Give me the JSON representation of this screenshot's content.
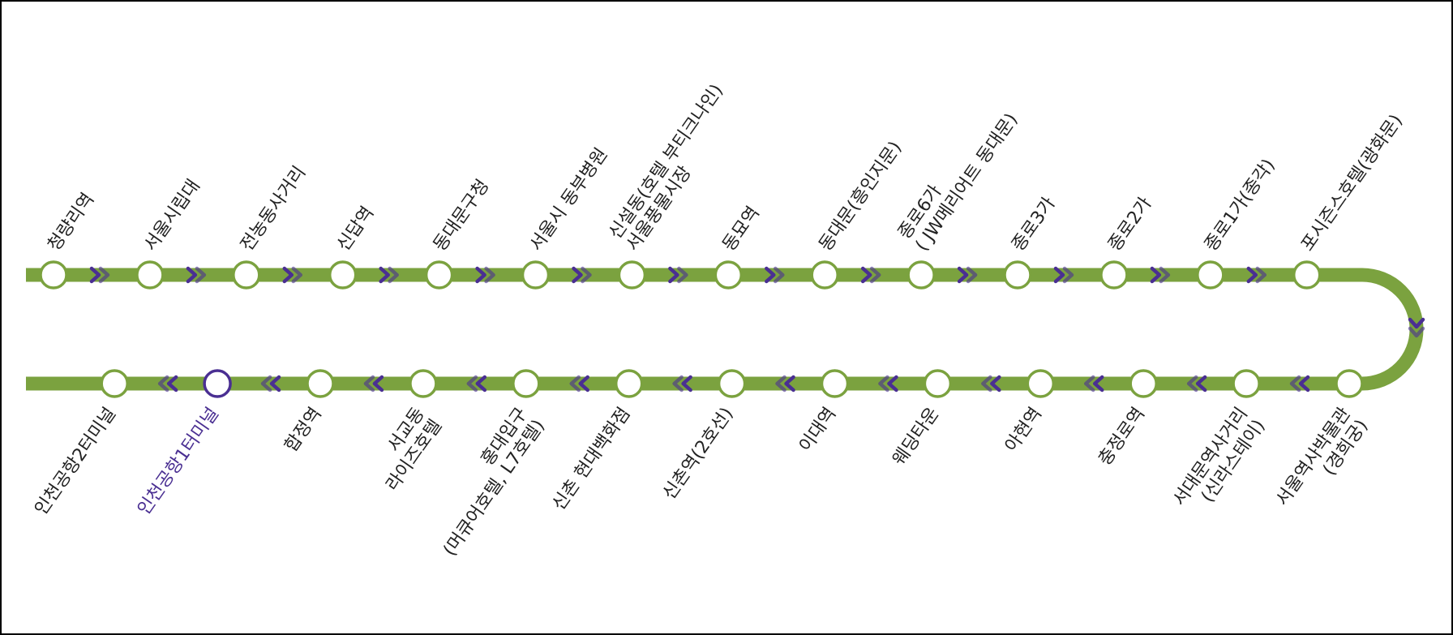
{
  "top_stations": [
    {
      "lines": [
        "청량리역"
      ]
    },
    {
      "lines": [
        "서울시립대"
      ]
    },
    {
      "lines": [
        "전농동사거리"
      ]
    },
    {
      "lines": [
        "신답역"
      ]
    },
    {
      "lines": [
        "동대문구청"
      ]
    },
    {
      "lines": [
        "서울시 동부병원"
      ]
    },
    {
      "lines": [
        "신설동(호텔 부티크나인)",
        "서울풍물시장"
      ]
    },
    {
      "lines": [
        "동묘역"
      ]
    },
    {
      "lines": [
        "동대문(흥인지문)"
      ]
    },
    {
      "lines": [
        "종로6가",
        "( JW메리어트 동대문)"
      ]
    },
    {
      "lines": [
        "종로3가"
      ]
    },
    {
      "lines": [
        "종로2가"
      ]
    },
    {
      "lines": [
        "종로1가(종각)"
      ]
    },
    {
      "lines": [
        "포시즌스호텔(광화문)"
      ]
    }
  ],
  "bottom_stations": [
    {
      "lines": [
        "서울역사박물관",
        "(경희궁)"
      ]
    },
    {
      "lines": [
        "서대문역사거리",
        "(신라스테이)"
      ]
    },
    {
      "lines": [
        "충정로역"
      ]
    },
    {
      "lines": [
        "아현역"
      ]
    },
    {
      "lines": [
        "웨딩타운"
      ]
    },
    {
      "lines": [
        "이대역"
      ]
    },
    {
      "lines": [
        "신촌역(2호선)"
      ]
    },
    {
      "lines": [
        "신촌 현대백화점"
      ]
    },
    {
      "lines": [
        "홍대입구",
        "(머큐어호텔, L7호텔)"
      ]
    },
    {
      "lines": [
        "서교동",
        "라이즈호텔"
      ]
    },
    {
      "lines": [
        "합정역"
      ]
    },
    {
      "lines": [
        "인천공항1터미널"
      ],
      "current": true
    },
    {
      "lines": [
        "인천공항2터미널"
      ]
    }
  ]
}
